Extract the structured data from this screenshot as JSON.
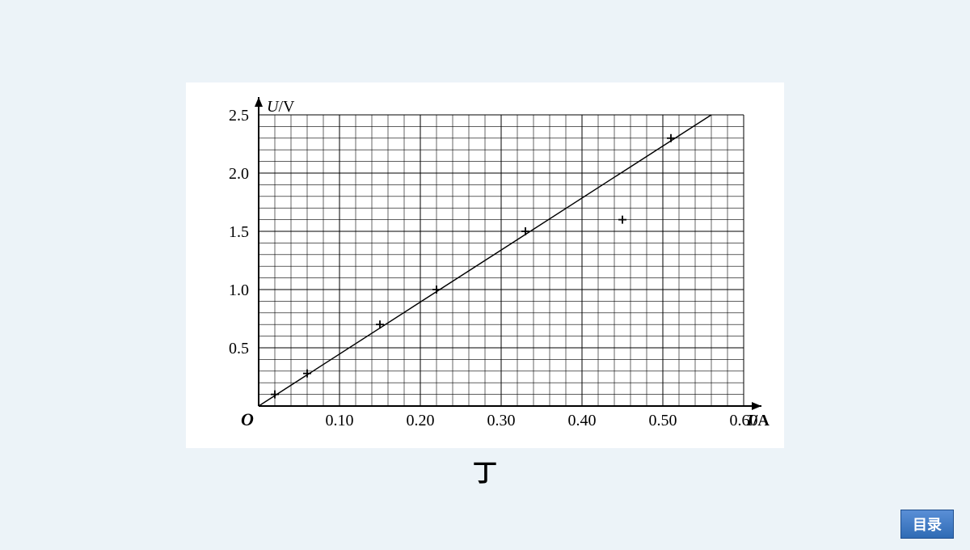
{
  "chart": {
    "type": "scatter-with-line",
    "background_color": "#ffffff",
    "grid": {
      "show": true,
      "minor_step_x": 0.02,
      "minor_step_y": 0.1,
      "major_step_x": 0.1,
      "major_step_y": 0.5,
      "color": "#000000",
      "minor_width": 0.6,
      "major_width": 1.0
    },
    "x_axis": {
      "label_it": "I",
      "label_rest": "/A",
      "min": 0,
      "max": 0.6,
      "ticks": [
        0.1,
        0.2,
        0.3,
        0.4,
        0.5,
        0.6
      ],
      "tick_fontsize": 20
    },
    "y_axis": {
      "label_it": "U",
      "label_rest": "/V",
      "min": 0,
      "max": 2.5,
      "ticks": [
        0.5,
        1.0,
        1.5,
        2.0,
        2.5
      ],
      "tick_fontsize": 20
    },
    "origin_label": "O",
    "origin_fontstyle": "italic",
    "points": [
      {
        "x": 0.02,
        "y": 0.1
      },
      {
        "x": 0.06,
        "y": 0.28
      },
      {
        "x": 0.15,
        "y": 0.7
      },
      {
        "x": 0.22,
        "y": 1.0
      },
      {
        "x": 0.33,
        "y": 1.5
      },
      {
        "x": 0.45,
        "y": 1.6
      },
      {
        "x": 0.51,
        "y": 2.3
      }
    ],
    "marker": {
      "type": "plus",
      "size": 10,
      "stroke": "#000000",
      "stroke_width": 1.8
    },
    "fit_line": {
      "x1": 0.0,
      "y1": 0.0,
      "x2": 0.56,
      "y2": 2.5,
      "color": "#000000",
      "width": 1.4
    },
    "axis_color": "#000000",
    "axis_width": 2.0,
    "label_fontsize": 20
  },
  "caption": "丁",
  "toc_button": "目录"
}
